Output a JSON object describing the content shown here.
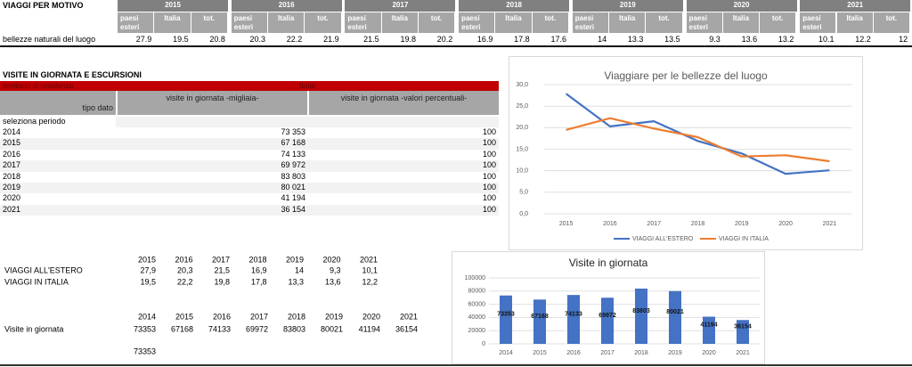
{
  "travel_table": {
    "title": "VIAGGI PER MOTIVO",
    "years": [
      "2015",
      "2016",
      "2017",
      "2018",
      "2019",
      "2020",
      "2021"
    ],
    "subheaders": [
      "paesi esteri",
      "Italia",
      "tot."
    ],
    "row_label": "bellezze naturali del luogo",
    "values": [
      [
        "27.9",
        "19.5",
        "20.8"
      ],
      [
        "20.3",
        "22.2",
        "21.9"
      ],
      [
        "21.5",
        "19.8",
        "20.2"
      ],
      [
        "16.9",
        "17.8",
        "17.6"
      ],
      [
        "14",
        "13.3",
        "13.5"
      ],
      [
        "9.3",
        "13.6",
        "13.2"
      ],
      [
        "10.1",
        "12.2",
        "12"
      ]
    ]
  },
  "day_trips_table": {
    "title": "VISITE IN GIORNATA E ESCURSIONI",
    "filter_label": "territorio di residenza",
    "filter_value": "Italia",
    "row_header": "tipo dato",
    "columns": [
      "visite in giornata -migliaia-",
      "visite in giornata -valori percentuali-"
    ],
    "period_label": "seleziona periodo",
    "rows": [
      [
        "2014",
        "73 353",
        "100"
      ],
      [
        "2015",
        "67 168",
        "100"
      ],
      [
        "2016",
        "74 133",
        "100"
      ],
      [
        "2017",
        "69 972",
        "100"
      ],
      [
        "2018",
        "83 803",
        "100"
      ],
      [
        "2019",
        "80 021",
        "100"
      ],
      [
        "2020",
        "41 194",
        "100"
      ],
      [
        "2021",
        "36 154",
        "100"
      ]
    ]
  },
  "source_data": {
    "years_a": [
      "2015",
      "2016",
      "2017",
      "2018",
      "2019",
      "2020",
      "2021"
    ],
    "series": [
      {
        "label": "VIAGGI ALL'ESTERO",
        "values": [
          "27,9",
          "20,3",
          "21,5",
          "16,9",
          "14",
          "9,3",
          "10,1"
        ]
      },
      {
        "label": "VIAGGI IN ITALIA",
        "values": [
          "19,5",
          "22,2",
          "19,8",
          "17,8",
          "13,3",
          "13,6",
          "12,2"
        ]
      }
    ],
    "years_b": [
      "2014",
      "2015",
      "2016",
      "2017",
      "2018",
      "2019",
      "2020",
      "2021"
    ],
    "visits_label": "Visite in giornata",
    "visits": [
      "73353",
      "67168",
      "74133",
      "69972",
      "83803",
      "80021",
      "41194",
      "36154"
    ],
    "extra": "73353"
  },
  "chart_data": [
    {
      "type": "line",
      "title": "Viaggiare per le bellezze del luogo",
      "categories": [
        "2015",
        "2016",
        "2017",
        "2018",
        "2019",
        "2020",
        "2021"
      ],
      "series": [
        {
          "name": "VIAGGI ALL'ESTERO",
          "color": "#4472c4",
          "values": [
            27.9,
            20.3,
            21.5,
            16.9,
            14,
            9.3,
            10.1
          ]
        },
        {
          "name": "VIAGGI IN ITALIA",
          "color": "#ed7d31",
          "values": [
            19.5,
            22.2,
            19.8,
            17.8,
            13.3,
            13.6,
            12.2
          ]
        }
      ],
      "ylim": [
        0,
        30
      ],
      "yticks": [
        {
          "value": 0,
          "label": "0,0"
        },
        {
          "value": 5,
          "label": "5,0"
        },
        {
          "value": 10,
          "label": "10,0"
        },
        {
          "value": 15,
          "label": "15,0"
        },
        {
          "value": 20,
          "label": "20,0"
        },
        {
          "value": 25,
          "label": "25,0"
        },
        {
          "value": 30,
          "label": "30,0"
        }
      ],
      "grid": true,
      "legend": "bottom"
    },
    {
      "type": "bar",
      "title": "Visite in giornata",
      "categories": [
        "2014",
        "2015",
        "2016",
        "2017",
        "2018",
        "2019",
        "2020",
        "2021"
      ],
      "values": [
        73353,
        67168,
        74133,
        69972,
        83803,
        80021,
        41194,
        36154
      ],
      "color": "#4472c4",
      "ylim": [
        0,
        100000
      ],
      "yticks": [
        0,
        20000,
        40000,
        60000,
        80000,
        100000
      ],
      "grid": true,
      "data_labels": true
    }
  ]
}
